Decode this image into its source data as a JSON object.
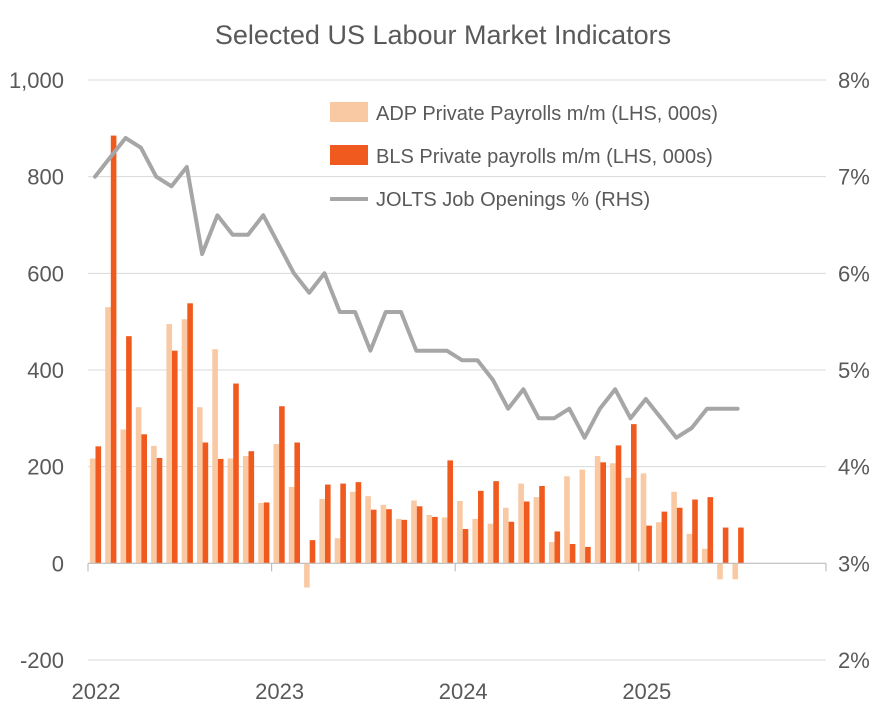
{
  "chart_data": {
    "type": "bar",
    "title": "Selected US Labour Market Indicators",
    "xlabel": "",
    "ylabel": "",
    "x_tick_labels": [
      "2022",
      "2023",
      "2024",
      "2025"
    ],
    "y_left": {
      "ylim": [
        -200,
        1000
      ],
      "ticks": [
        -200,
        0,
        200,
        400,
        600,
        800,
        1000
      ],
      "tick_labels": [
        "-200",
        "0",
        "200",
        "400",
        "600",
        "800",
        "1,000"
      ]
    },
    "y_right": {
      "ylim": [
        2,
        8
      ],
      "ticks": [
        2,
        3,
        4,
        5,
        6,
        7,
        8
      ],
      "tick_labels": [
        "2%",
        "3%",
        "4%",
        "5%",
        "6%",
        "7%",
        "8%"
      ]
    },
    "legend_position": "top-right",
    "grid": true,
    "categories": [
      "2022-01",
      "2022-02",
      "2022-03",
      "2022-04",
      "2022-05",
      "2022-06",
      "2022-07",
      "2022-08",
      "2022-09",
      "2022-10",
      "2022-11",
      "2022-12",
      "2023-01",
      "2023-02",
      "2023-03",
      "2023-04",
      "2023-05",
      "2023-06",
      "2023-07",
      "2023-08",
      "2023-09",
      "2023-10",
      "2023-11",
      "2023-12",
      "2024-01",
      "2024-02",
      "2024-03",
      "2024-04",
      "2024-05",
      "2024-06",
      "2024-07",
      "2024-08",
      "2024-09",
      "2024-10",
      "2024-11",
      "2024-12",
      "2025-01",
      "2025-02",
      "2025-03",
      "2025-04",
      "2025-05",
      "2025-06",
      "2025-07",
      "2025-08"
    ],
    "series": [
      {
        "name": "ADP Private Payrolls m/m (LHS, 000s)",
        "type": "bar",
        "axis": "left",
        "color": "#f8c9a3",
        "values": [
          217,
          530,
          277,
          323,
          243,
          495,
          505,
          323,
          443,
          217,
          222,
          125,
          247,
          158,
          -50,
          133,
          52,
          148,
          139,
          121,
          92,
          130,
          100,
          95,
          129,
          92,
          82,
          115,
          165,
          137,
          44,
          180,
          194,
          222,
          207,
          177,
          186,
          85,
          148,
          61,
          30,
          -33,
          -33,
          null
        ]
      },
      {
        "name": "BLS Private payrolls m/m (LHS, 000s)",
        "type": "bar",
        "axis": "left",
        "color": "#f05a1e",
        "values": [
          242,
          885,
          470,
          267,
          218,
          440,
          538,
          250,
          216,
          372,
          232,
          126,
          325,
          250,
          48,
          163,
          165,
          168,
          111,
          112,
          90,
          118,
          96,
          213,
          71,
          150,
          170,
          86,
          128,
          160,
          66,
          40,
          34,
          209,
          244,
          288,
          78,
          107,
          115,
          132,
          137,
          74,
          74,
          null
        ]
      },
      {
        "name": "JOLTS Job Openings % (RHS)",
        "type": "line",
        "axis": "right",
        "color": "#a6a6a6",
        "values": [
          7.0,
          7.2,
          7.4,
          7.3,
          7.0,
          6.9,
          7.1,
          6.2,
          6.6,
          6.4,
          6.4,
          6.6,
          6.3,
          6.0,
          5.8,
          6.0,
          5.6,
          5.6,
          5.2,
          5.6,
          5.6,
          5.2,
          5.2,
          5.2,
          5.1,
          5.1,
          4.9,
          4.6,
          4.8,
          4.5,
          4.5,
          4.6,
          4.3,
          4.6,
          4.8,
          4.5,
          4.7,
          4.5,
          4.3,
          4.4,
          4.6,
          4.6,
          4.6,
          null
        ]
      }
    ]
  }
}
